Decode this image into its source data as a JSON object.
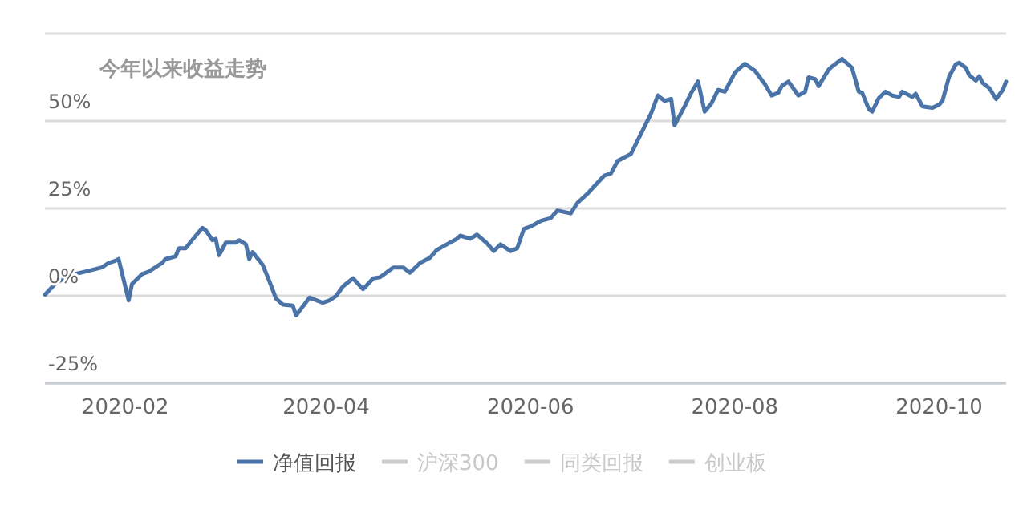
{
  "chart_data": {
    "type": "line",
    "title": "今年以来收益走势",
    "x": [
      "2020-01-08",
      "2020-01-11",
      "2020-01-15",
      "2020-01-20",
      "2020-01-25",
      "2020-01-27",
      "2020-01-29",
      "2020-01-30",
      "2020-02-02",
      "2020-02-03",
      "2020-02-06",
      "2020-02-08",
      "2020-02-12",
      "2020-02-13",
      "2020-02-16",
      "2020-02-17",
      "2020-02-19",
      "2020-02-21",
      "2020-02-24",
      "2020-02-25",
      "2020-02-27",
      "2020-02-28",
      "2020-02-29",
      "2020-03-02",
      "2020-03-05",
      "2020-03-06",
      "2020-03-08",
      "2020-03-09",
      "2020-03-10",
      "2020-03-13",
      "2020-03-15",
      "2020-03-17",
      "2020-03-19",
      "2020-03-22",
      "2020-03-23",
      "2020-03-27",
      "2020-03-28",
      "2020-03-31",
      "2020-04-02",
      "2020-04-04",
      "2020-04-06",
      "2020-04-09",
      "2020-04-12",
      "2020-04-15",
      "2020-04-17",
      "2020-04-21",
      "2020-04-24",
      "2020-04-26",
      "2020-04-29",
      "2020-05-02",
      "2020-05-04",
      "2020-05-07",
      "2020-05-10",
      "2020-05-11",
      "2020-05-14",
      "2020-05-16",
      "2020-05-19",
      "2020-05-21",
      "2020-05-23",
      "2020-05-26",
      "2020-05-28",
      "2020-05-30",
      "2020-06-01",
      "2020-06-04",
      "2020-06-07",
      "2020-06-09",
      "2020-06-11",
      "2020-06-13",
      "2020-06-15",
      "2020-06-18",
      "2020-06-20",
      "2020-06-23",
      "2020-06-25",
      "2020-06-27",
      "2020-07-01",
      "2020-07-04",
      "2020-07-07",
      "2020-07-09",
      "2020-07-11",
      "2020-07-13",
      "2020-07-14",
      "2020-07-17",
      "2020-07-19",
      "2020-07-21",
      "2020-07-23",
      "2020-07-25",
      "2020-07-27",
      "2020-07-29",
      "2020-08-01",
      "2020-08-02",
      "2020-08-04",
      "2020-08-07",
      "2020-08-10",
      "2020-08-12",
      "2020-08-14",
      "2020-08-15",
      "2020-08-17",
      "2020-08-20",
      "2020-08-22",
      "2020-08-23",
      "2020-08-25",
      "2020-08-26",
      "2020-08-29",
      "2020-08-30",
      "2020-09-02",
      "2020-09-05",
      "2020-09-07",
      "2020-09-08",
      "2020-09-10",
      "2020-09-11",
      "2020-09-13",
      "2020-09-15",
      "2020-09-17",
      "2020-09-19",
      "2020-09-20",
      "2020-09-23",
      "2020-09-24",
      "2020-09-26",
      "2020-09-29",
      "2020-10-01",
      "2020-10-02",
      "2020-10-04",
      "2020-10-06",
      "2020-10-07",
      "2020-10-09",
      "2020-10-10",
      "2020-10-12",
      "2020-10-13",
      "2020-10-14",
      "2020-10-16",
      "2020-10-18",
      "2020-10-20",
      "2020-10-21"
    ],
    "series": [
      {
        "name": "净值回报",
        "color": "#4a74a8",
        "values": [
          0.3,
          3.4,
          5.8,
          6.9,
          8.1,
          9.4,
          10,
          10.5,
          -1.3,
          3.4,
          6.2,
          6.9,
          9.4,
          10.5,
          11.3,
          13.6,
          13.6,
          16,
          19.4,
          18.8,
          15.9,
          16.3,
          11.6,
          15.2,
          15.2,
          15.9,
          14.7,
          10.5,
          12.5,
          8.9,
          4.2,
          -0.8,
          -2.5,
          -2.8,
          -5.6,
          -0.5,
          -0.9,
          -2,
          -1.3,
          0,
          2.7,
          5,
          1.9,
          5,
          5.3,
          8.1,
          8.1,
          6.6,
          9.4,
          10.9,
          13.1,
          14.7,
          16.3,
          17.2,
          16.3,
          17.5,
          15,
          12.8,
          14.7,
          12.8,
          13.6,
          19.1,
          19.8,
          21.4,
          22.2,
          24.4,
          24,
          23.6,
          26.6,
          29.2,
          31.3,
          34.4,
          35,
          38.6,
          40.6,
          46.4,
          52.2,
          57.3,
          55.8,
          56.3,
          48.8,
          54.2,
          58.1,
          61.3,
          52.7,
          55,
          58.9,
          58.4,
          63.8,
          64.8,
          66.4,
          64.4,
          60.5,
          57.3,
          58.1,
          60,
          61.3,
          57.3,
          58.4,
          62.5,
          62,
          60,
          64.7,
          65.6,
          67.8,
          65.2,
          58.4,
          58.1,
          53.4,
          52.7,
          56.6,
          58.4,
          57.3,
          56.9,
          58.4,
          56.9,
          57.8,
          54.2,
          53.8,
          54.7,
          55.8,
          62.8,
          66.3,
          66.7,
          65.2,
          63.1,
          61.6,
          62.8,
          60.9,
          59.4,
          56.3,
          58.9,
          61.3
        ]
      },
      {
        "name": "沪深300",
        "color": "#cccccc",
        "values": [
          null,
          null,
          null,
          null,
          null,
          null,
          null,
          null,
          null,
          null,
          null,
          null,
          null,
          null,
          null,
          null,
          null,
          null,
          null,
          null,
          null,
          null,
          null,
          null,
          null,
          null,
          null,
          null,
          null,
          null,
          null,
          null,
          null,
          null,
          null,
          null,
          null,
          null,
          null,
          null,
          null,
          null,
          null,
          null,
          null,
          null,
          null,
          null,
          null,
          null,
          null,
          null,
          null,
          null,
          null,
          null,
          null,
          null,
          null,
          null,
          null,
          null,
          null,
          null,
          null,
          null,
          null,
          null,
          null,
          null,
          null,
          null,
          null,
          null,
          null,
          null,
          null,
          null,
          null,
          null,
          null,
          null,
          null,
          null,
          null,
          null,
          null,
          null,
          null,
          null,
          null,
          null,
          null,
          null,
          null,
          null,
          null,
          null,
          null,
          null,
          null,
          null,
          null,
          null,
          null,
          null,
          null,
          null,
          null,
          null,
          null,
          null,
          null,
          null,
          null,
          null,
          null,
          null,
          null,
          null,
          null,
          null,
          null,
          null,
          null,
          null,
          null,
          null,
          null,
          null,
          null,
          null,
          null
        ]
      },
      {
        "name": "同类回报",
        "color": "#cccccc",
        "values": [
          null,
          null,
          null,
          null,
          null,
          null,
          null,
          null,
          null,
          null,
          null,
          null,
          null,
          null,
          null,
          null,
          null,
          null,
          null,
          null,
          null,
          null,
          null,
          null,
          null,
          null,
          null,
          null,
          null,
          null,
          null,
          null,
          null,
          null,
          null,
          null,
          null,
          null,
          null,
          null,
          null,
          null,
          null,
          null,
          null,
          null,
          null,
          null,
          null,
          null,
          null,
          null,
          null,
          null,
          null,
          null,
          null,
          null,
          null,
          null,
          null,
          null,
          null,
          null,
          null,
          null,
          null,
          null,
          null,
          null,
          null,
          null,
          null,
          null,
          null,
          null,
          null,
          null,
          null,
          null,
          null,
          null,
          null,
          null,
          null,
          null,
          null,
          null,
          null,
          null,
          null,
          null,
          null,
          null,
          null,
          null,
          null,
          null,
          null,
          null,
          null,
          null,
          null,
          null,
          null,
          null,
          null,
          null,
          null,
          null,
          null,
          null,
          null,
          null,
          null,
          null,
          null,
          null,
          null,
          null,
          null,
          null,
          null,
          null,
          null,
          null,
          null,
          null,
          null,
          null,
          null,
          null,
          null
        ]
      },
      {
        "name": "创业板",
        "color": "#cccccc",
        "values": [
          null,
          null,
          null,
          null,
          null,
          null,
          null,
          null,
          null,
          null,
          null,
          null,
          null,
          null,
          null,
          null,
          null,
          null,
          null,
          null,
          null,
          null,
          null,
          null,
          null,
          null,
          null,
          null,
          null,
          null,
          null,
          null,
          null,
          null,
          null,
          null,
          null,
          null,
          null,
          null,
          null,
          null,
          null,
          null,
          null,
          null,
          null,
          null,
          null,
          null,
          null,
          null,
          null,
          null,
          null,
          null,
          null,
          null,
          null,
          null,
          null,
          null,
          null,
          null,
          null,
          null,
          null,
          null,
          null,
          null,
          null,
          null,
          null,
          null,
          null,
          null,
          null,
          null,
          null,
          null,
          null,
          null,
          null,
          null,
          null,
          null,
          null,
          null,
          null,
          null,
          null,
          null,
          null,
          null,
          null,
          null,
          null,
          null,
          null,
          null,
          null,
          null,
          null,
          null,
          null,
          null,
          null,
          null,
          null,
          null,
          null,
          null,
          null,
          null,
          null,
          null,
          null,
          null,
          null,
          null,
          null,
          null,
          null,
          null,
          null,
          null,
          null,
          null,
          null,
          null,
          null,
          null,
          null
        ]
      }
    ],
    "xlim": [
      "2020-01-08",
      "2020-10-21"
    ],
    "xticks": [
      {
        "value": "2020-02-01",
        "label": "2020-02"
      },
      {
        "value": "2020-04-01",
        "label": "2020-04"
      },
      {
        "value": "2020-06-01",
        "label": "2020-06"
      },
      {
        "value": "2020-08-01",
        "label": "2020-08"
      },
      {
        "value": "2020-10-01",
        "label": "2020-10"
      }
    ],
    "ylim": [
      -25,
      75
    ],
    "yticks": [
      {
        "value": -25,
        "label": "-25%"
      },
      {
        "value": 0,
        "label": "0%"
      },
      {
        "value": 25,
        "label": "25%"
      },
      {
        "value": 50,
        "label": "50%"
      },
      {
        "value": 75,
        "label": null
      }
    ],
    "grid": "y",
    "legend": "bottom",
    "marker": "none",
    "line_style": "solid"
  }
}
